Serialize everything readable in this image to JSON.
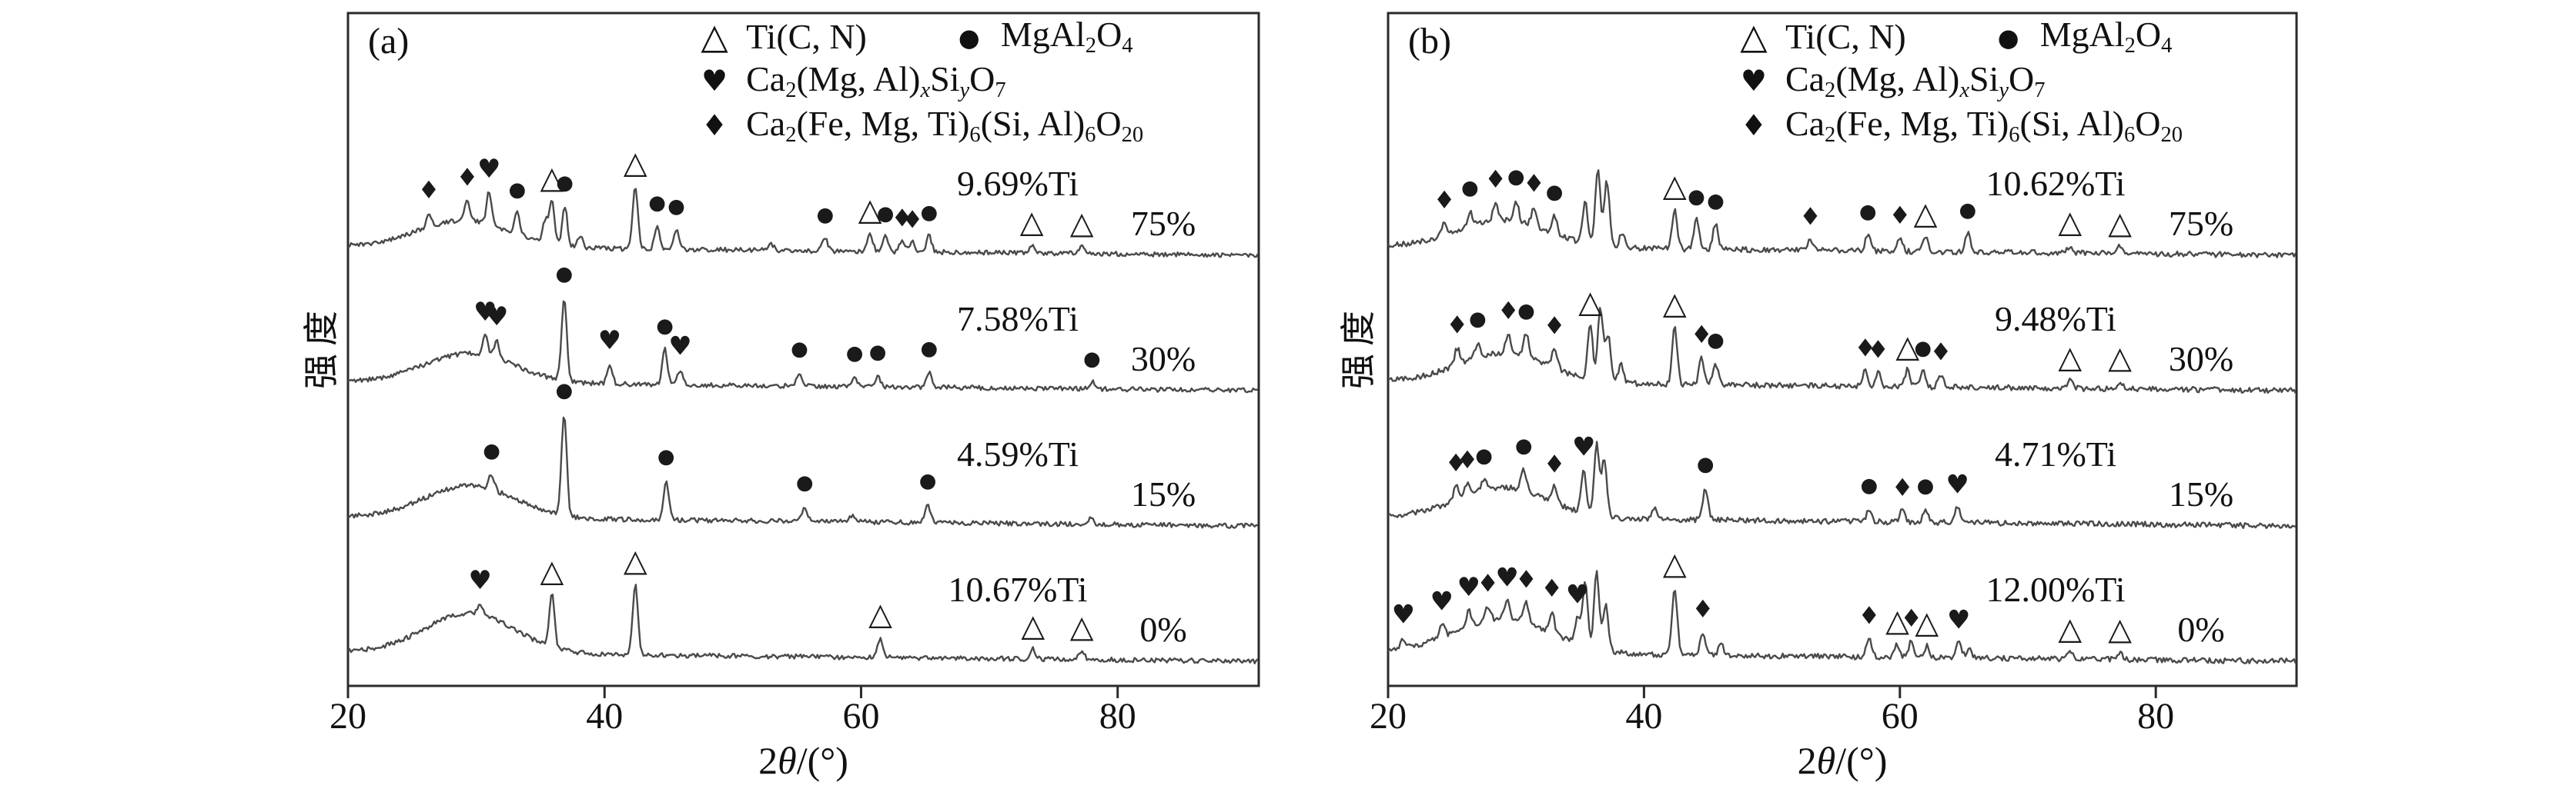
{
  "colors": {
    "trace": "#4a4a4a",
    "marker": "#1a1a1a",
    "axis": "#2b2b2b",
    "background": "#ffffff"
  },
  "symbols": {
    "t": "△",
    "c": "●",
    "h": "♥",
    "d": "♦"
  },
  "legend": {
    "rows": [
      [
        0,
        1
      ],
      [
        2
      ],
      [
        3
      ]
    ],
    "entries": [
      {
        "symbol": "t",
        "name": "Ti(C, N)",
        "segments": [
          {
            "t": "Ti(C, N)"
          }
        ]
      },
      {
        "symbol": "c",
        "name": "MgAl2O4",
        "segments": [
          {
            "t": "MgAl"
          },
          {
            "s": "2"
          },
          {
            "t": "O"
          },
          {
            "s": "4"
          }
        ]
      },
      {
        "symbol": "h",
        "name": "Ca2(Mg, Al)xSiyO7",
        "segments": [
          {
            "t": "Ca"
          },
          {
            "s": "2"
          },
          {
            "t": "(Mg, Al)"
          },
          {
            "s": "x",
            "i": true
          },
          {
            "t": "Si"
          },
          {
            "s": "y",
            "i": true
          },
          {
            "t": "O"
          },
          {
            "s": "7"
          }
        ]
      },
      {
        "symbol": "d",
        "name": "Ca2(Fe, Mg, Ti)6(Si, Al)6O20",
        "segments": [
          {
            "t": "Ca"
          },
          {
            "s": "2"
          },
          {
            "t": "(Fe, Mg, Ti)"
          },
          {
            "s": "6"
          },
          {
            "t": "(Si, Al)"
          },
          {
            "s": "6"
          },
          {
            "t": "O"
          },
          {
            "s": "20"
          }
        ]
      }
    ]
  },
  "chart_data": [
    {
      "type": "line",
      "panel_tag": "(a)",
      "ylabel": "强度",
      "xlabel": "2θ/(°)",
      "xlabel_segments": [
        {
          "t": "2"
        },
        {
          "t": "θ",
          "i": true
        },
        {
          "t": "/(°)"
        }
      ],
      "xlim": [
        20,
        91
      ],
      "x_ticks": [
        "20",
        "40",
        "60",
        "80"
      ],
      "series": [
        {
          "name": "75%",
          "ti_content_label": "9.69%Ti",
          "height_pct_label": "75%",
          "hump": {
            "center": 29.0,
            "sigma": 3.5,
            "height": 35
          },
          "peaks": [
            [
              26.3,
              18
            ],
            [
              29.3,
              26
            ],
            [
              31.0,
              42
            ],
            [
              33.2,
              28
            ],
            [
              35.4,
              30
            ],
            [
              35.9,
              55
            ],
            [
              36.9,
              52
            ],
            [
              38.1,
              14
            ],
            [
              42.4,
              82
            ],
            [
              44.1,
              30
            ],
            [
              45.6,
              26
            ],
            [
              53.0,
              7
            ],
            [
              57.2,
              17
            ],
            [
              60.7,
              24
            ],
            [
              61.9,
              19
            ],
            [
              63.2,
              14
            ],
            [
              64.0,
              12
            ],
            [
              65.3,
              21
            ],
            [
              73.3,
              10
            ],
            [
              77.2,
              9
            ]
          ],
          "markers": [
            [
              26.3,
              "d"
            ],
            [
              29.3,
              "d"
            ],
            [
              31.0,
              "h"
            ],
            [
              33.2,
              "c"
            ],
            [
              35.9,
              "t"
            ],
            [
              36.9,
              "c"
            ],
            [
              42.4,
              "t"
            ],
            [
              44.1,
              "c"
            ],
            [
              45.6,
              "c"
            ],
            [
              57.2,
              "c"
            ],
            [
              60.7,
              "t"
            ],
            [
              61.9,
              "c"
            ],
            [
              63.2,
              "d"
            ],
            [
              64.0,
              "d"
            ],
            [
              65.3,
              "c"
            ],
            [
              73.3,
              "t"
            ],
            [
              77.2,
              "t"
            ]
          ]
        },
        {
          "name": "30%",
          "ti_content_label": "7.58%Ti",
          "height_pct_label": "30%",
          "hump": {
            "center": 29.5,
            "sigma": 3.5,
            "height": 38
          },
          "peaks": [
            [
              30.7,
              26
            ],
            [
              31.6,
              24
            ],
            [
              36.85,
              108
            ],
            [
              40.4,
              26
            ],
            [
              44.7,
              46
            ],
            [
              45.9,
              20
            ],
            [
              55.2,
              18
            ],
            [
              59.5,
              13
            ],
            [
              61.3,
              15
            ],
            [
              65.3,
              20
            ],
            [
              78.0,
              9
            ]
          ],
          "markers": [
            [
              30.7,
              "h"
            ],
            [
              31.6,
              "h"
            ],
            [
              36.85,
              "c"
            ],
            [
              40.4,
              "h"
            ],
            [
              44.7,
              "c"
            ],
            [
              45.9,
              "h"
            ],
            [
              55.2,
              "c"
            ],
            [
              59.5,
              "c"
            ],
            [
              61.3,
              "c"
            ],
            [
              65.3,
              "c"
            ],
            [
              78.0,
              "c"
            ]
          ]
        },
        {
          "name": "15%",
          "ti_content_label": "4.59%Ti",
          "height_pct_label": "15%",
          "hump": {
            "center": 29.5,
            "sigma": 3.5,
            "height": 42
          },
          "peaks": [
            [
              31.2,
              20
            ],
            [
              36.85,
              132
            ],
            [
              44.8,
              52
            ],
            [
              55.6,
              20
            ],
            [
              59.3,
              8
            ],
            [
              65.2,
              24
            ],
            [
              77.9,
              7
            ]
          ],
          "markers": [
            [
              31.2,
              "c"
            ],
            [
              36.85,
              "c"
            ],
            [
              44.8,
              "c"
            ],
            [
              55.6,
              "c"
            ],
            [
              65.2,
              "c"
            ]
          ]
        },
        {
          "name": "0%",
          "ti_content_label": "10.67%Ti",
          "height_pct_label": "0%",
          "hump": {
            "center": 29.5,
            "sigma": 3.5,
            "height": 52
          },
          "peaks": [
            [
              30.3,
              14
            ],
            [
              35.9,
              68
            ],
            [
              42.4,
              92
            ],
            [
              61.5,
              26
            ],
            [
              73.4,
              13
            ],
            [
              77.2,
              12
            ]
          ],
          "markers": [
            [
              30.3,
              "h"
            ],
            [
              35.9,
              "t"
            ],
            [
              42.4,
              "t"
            ],
            [
              61.5,
              "t"
            ],
            [
              73.4,
              "t"
            ],
            [
              77.2,
              "t"
            ]
          ]
        }
      ]
    },
    {
      "type": "line",
      "panel_tag": "(b)",
      "ylabel": "强度",
      "xlabel": "2θ/(°)",
      "xlabel_segments": [
        {
          "t": "2"
        },
        {
          "t": "θ",
          "i": true
        },
        {
          "t": "/(°)"
        }
      ],
      "xlim": [
        20,
        91
      ],
      "x_ticks": [
        "20",
        "40",
        "60",
        "80"
      ],
      "series": [
        {
          "name": "75%",
          "ti_content_label": "10.62%Ti",
          "height_pct_label": "75%",
          "hump": {
            "center": 29.0,
            "sigma": 3.5,
            "height": 35
          },
          "peaks": [
            [
              24.4,
              16
            ],
            [
              26.4,
              20
            ],
            [
              28.4,
              24
            ],
            [
              30.0,
              28
            ],
            [
              31.4,
              26
            ],
            [
              33.0,
              24
            ],
            [
              35.4,
              55
            ],
            [
              36.4,
              98
            ],
            [
              37.1,
              85
            ],
            [
              38.3,
              20
            ],
            [
              42.4,
              52
            ],
            [
              44.1,
              38
            ],
            [
              45.6,
              33
            ],
            [
              53.0,
              14
            ],
            [
              57.5,
              21
            ],
            [
              60.0,
              17
            ],
            [
              62.0,
              19
            ],
            [
              65.3,
              24
            ],
            [
              73.3,
              10
            ],
            [
              77.2,
              9
            ]
          ],
          "markers": [
            [
              24.4,
              "d"
            ],
            [
              26.4,
              "c"
            ],
            [
              28.4,
              "d"
            ],
            [
              30.0,
              "c"
            ],
            [
              31.4,
              "d"
            ],
            [
              33.0,
              "c"
            ],
            [
              42.4,
              "t"
            ],
            [
              44.1,
              "c"
            ],
            [
              45.6,
              "c"
            ],
            [
              53.0,
              "d"
            ],
            [
              57.5,
              "c"
            ],
            [
              60.0,
              "d"
            ],
            [
              62.0,
              "t"
            ],
            [
              65.3,
              "c"
            ],
            [
              73.3,
              "t"
            ],
            [
              77.2,
              "t"
            ]
          ]
        },
        {
          "name": "30%",
          "ti_content_label": "9.48%Ti",
          "height_pct_label": "30%",
          "hump": {
            "center": 29.0,
            "sigma": 3.5,
            "height": 38
          },
          "peaks": [
            [
              25.4,
              22
            ],
            [
              27.0,
              20
            ],
            [
              29.4,
              26
            ],
            [
              30.8,
              30
            ],
            [
              33.0,
              25
            ],
            [
              35.8,
              70
            ],
            [
              36.6,
              95
            ],
            [
              37.2,
              60
            ],
            [
              38.2,
              25
            ],
            [
              42.4,
              75
            ],
            [
              44.5,
              35
            ],
            [
              45.6,
              28
            ],
            [
              57.3,
              20
            ],
            [
              58.3,
              18
            ],
            [
              60.6,
              22
            ],
            [
              61.8,
              20
            ],
            [
              63.2,
              16
            ],
            [
              73.3,
              10
            ],
            [
              77.2,
              10
            ]
          ],
          "markers": [
            [
              25.4,
              "d"
            ],
            [
              27.0,
              "c"
            ],
            [
              29.4,
              "d"
            ],
            [
              30.8,
              "c"
            ],
            [
              33.0,
              "d"
            ],
            [
              35.8,
              "t"
            ],
            [
              42.4,
              "t"
            ],
            [
              44.5,
              "d"
            ],
            [
              45.6,
              "c"
            ],
            [
              57.3,
              "d"
            ],
            [
              58.3,
              "d"
            ],
            [
              60.6,
              "t"
            ],
            [
              61.8,
              "c"
            ],
            [
              63.2,
              "d"
            ],
            [
              73.3,
              "t"
            ],
            [
              77.2,
              "t"
            ]
          ]
        },
        {
          "name": "15%",
          "ti_content_label": "4.71%Ti",
          "height_pct_label": "15%",
          "hump": {
            "center": 29.0,
            "sigma": 3.5,
            "height": 40
          },
          "peaks": [
            [
              25.3,
              18
            ],
            [
              26.2,
              16
            ],
            [
              27.5,
              14
            ],
            [
              30.6,
              28
            ],
            [
              33.0,
              20
            ],
            [
              35.3,
              55
            ],
            [
              36.3,
              92
            ],
            [
              36.9,
              75
            ],
            [
              40.8,
              14
            ],
            [
              44.8,
              42
            ],
            [
              57.6,
              17
            ],
            [
              60.2,
              15
            ],
            [
              62.0,
              17
            ],
            [
              64.5,
              19
            ]
          ],
          "markers": [
            [
              25.3,
              "d"
            ],
            [
              26.2,
              "d"
            ],
            [
              27.5,
              "c"
            ],
            [
              30.6,
              "c"
            ],
            [
              33.0,
              "d"
            ],
            [
              35.3,
              "h"
            ],
            [
              44.8,
              "c"
            ],
            [
              57.6,
              "c"
            ],
            [
              60.2,
              "d"
            ],
            [
              62.0,
              "c"
            ],
            [
              64.5,
              "h"
            ]
          ]
        },
        {
          "name": "0%",
          "ti_content_label": "12.00%Ti",
          "height_pct_label": "0%",
          "hump": {
            "center": 29.0,
            "sigma": 3.8,
            "height": 45
          },
          "peaks": [
            [
              21.2,
              13
            ],
            [
              24.2,
              16
            ],
            [
              26.3,
              20
            ],
            [
              27.8,
              18
            ],
            [
              29.3,
              23
            ],
            [
              30.8,
              26
            ],
            [
              32.8,
              28
            ],
            [
              34.8,
              32
            ],
            [
              35.4,
              80
            ],
            [
              36.3,
              100
            ],
            [
              37.0,
              60
            ],
            [
              42.4,
              88
            ],
            [
              44.6,
              30
            ],
            [
              46.0,
              16
            ],
            [
              57.6,
              24
            ],
            [
              59.8,
              17
            ],
            [
              60.9,
              21
            ],
            [
              62.1,
              15
            ],
            [
              64.6,
              19
            ],
            [
              65.4,
              13
            ],
            [
              73.3,
              9
            ],
            [
              77.2,
              9
            ]
          ],
          "markers": [
            [
              21.2,
              "h"
            ],
            [
              24.2,
              "h"
            ],
            [
              26.3,
              "h"
            ],
            [
              27.8,
              "d"
            ],
            [
              29.3,
              "h"
            ],
            [
              30.8,
              "d"
            ],
            [
              32.8,
              "d"
            ],
            [
              34.8,
              "h"
            ],
            [
              42.4,
              "t"
            ],
            [
              44.6,
              "d"
            ],
            [
              57.6,
              "d"
            ],
            [
              59.8,
              "t"
            ],
            [
              60.9,
              "d"
            ],
            [
              62.1,
              "t"
            ],
            [
              64.6,
              "h"
            ],
            [
              73.3,
              "t"
            ],
            [
              77.2,
              "t"
            ]
          ]
        }
      ]
    }
  ]
}
